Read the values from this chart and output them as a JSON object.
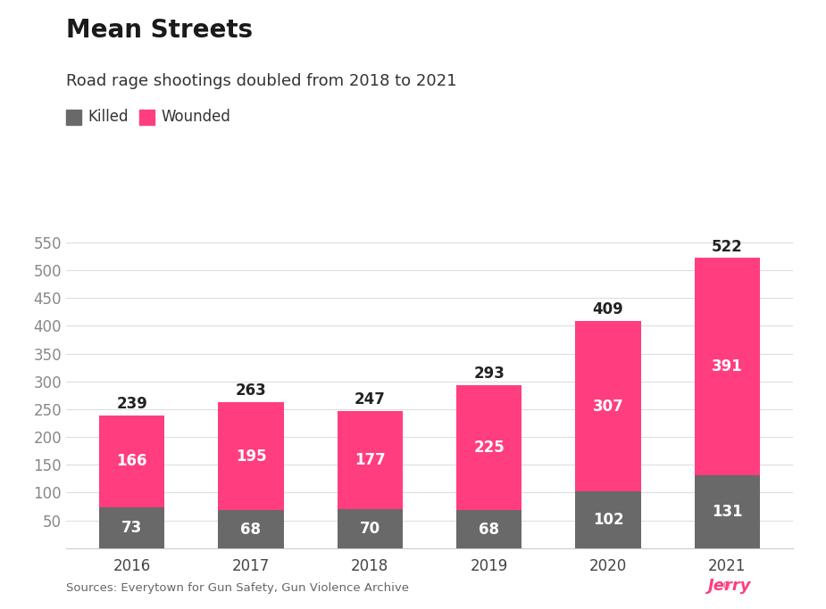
{
  "title": "Mean Streets",
  "subtitle": "Road rage shootings doubled from 2018 to 2021",
  "years": [
    2016,
    2017,
    2018,
    2019,
    2020,
    2021
  ],
  "killed": [
    73,
    68,
    70,
    68,
    102,
    131
  ],
  "wounded": [
    166,
    195,
    177,
    225,
    307,
    391
  ],
  "totals": [
    239,
    263,
    247,
    293,
    409,
    522
  ],
  "killed_color": "#696969",
  "wounded_color": "#FF3D7F",
  "background_color": "#ffffff",
  "title_fontsize": 20,
  "subtitle_fontsize": 13,
  "label_fontsize": 12,
  "tick_fontsize": 12,
  "source_text": "Sources: Everytown for Gun Safety, Gun Violence Archive",
  "legend_killed": "Killed",
  "legend_wounded": "Wounded",
  "ylim": [
    0,
    570
  ],
  "yticks": [
    0,
    50,
    100,
    150,
    200,
    250,
    300,
    350,
    400,
    450,
    500,
    550
  ],
  "bar_width": 0.55,
  "jerry_text": "Jerry",
  "grid_color": "#dddddd"
}
